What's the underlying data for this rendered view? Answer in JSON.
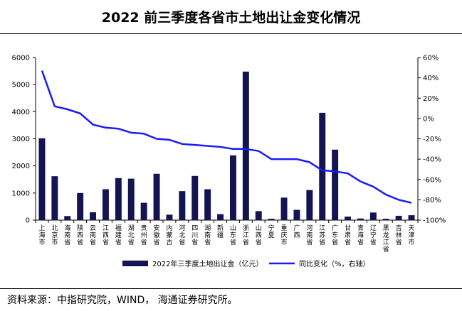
{
  "title": "2022 前三季度各省市土地出让金变化情况",
  "source": "资料来源：中指研究院，WIND，  海通证券研究所。",
  "colors": {
    "bar": "#141452",
    "line": "#1a1aff"
  },
  "chart_data": {
    "type": "bar",
    "categories": [
      "上海市",
      "北京市",
      "海南省",
      "陕西省",
      "云南省",
      "江西省",
      "福建省",
      "湖北省",
      "贵州省",
      "安徽省",
      "内蒙古",
      "河北省",
      "四川省",
      "湖南省",
      "新疆",
      "山东省",
      "浙江省",
      "山西省",
      "宁夏",
      "重庆市",
      "广西",
      "河南省",
      "江苏省",
      "广东省",
      "甘肃省",
      "青海省",
      "辽宁省",
      "黑龙江省",
      "吉林省",
      "天津市"
    ],
    "series": [
      {
        "name": "2022年三季度土地出让金（亿元）",
        "type": "bar",
        "axis": "left",
        "values": [
          3020,
          1620,
          150,
          1000,
          290,
          1140,
          1550,
          1530,
          640,
          1710,
          200,
          1070,
          1630,
          1140,
          220,
          2390,
          5480,
          330,
          50,
          830,
          380,
          1110,
          3960,
          2600,
          130,
          60,
          280,
          50,
          160,
          180
        ]
      },
      {
        "name": "同比变化（%，右轴）",
        "type": "line",
        "axis": "right",
        "values": [
          47,
          12,
          9,
          5,
          -6,
          -9,
          -10,
          -14,
          -15,
          -20,
          -21,
          -25,
          -26,
          -27,
          -28,
          -30,
          -30,
          -32,
          -40,
          -40,
          -40,
          -43,
          -51,
          -52,
          -54,
          -62,
          -67,
          -75,
          -80,
          -83
        ]
      }
    ],
    "y_left": {
      "ylim": [
        0,
        6000
      ],
      "ticks": [
        "0",
        "1000",
        "2000",
        "3000",
        "4000",
        "5000",
        "6000"
      ]
    },
    "y_right": {
      "ylim": [
        -100,
        60
      ],
      "ticks": [
        "-100%",
        "-80%",
        "-60%",
        "-40%",
        "-20%",
        "0%",
        "20%",
        "40%",
        "60%"
      ]
    },
    "legend_position": "bottom",
    "grid": false
  }
}
